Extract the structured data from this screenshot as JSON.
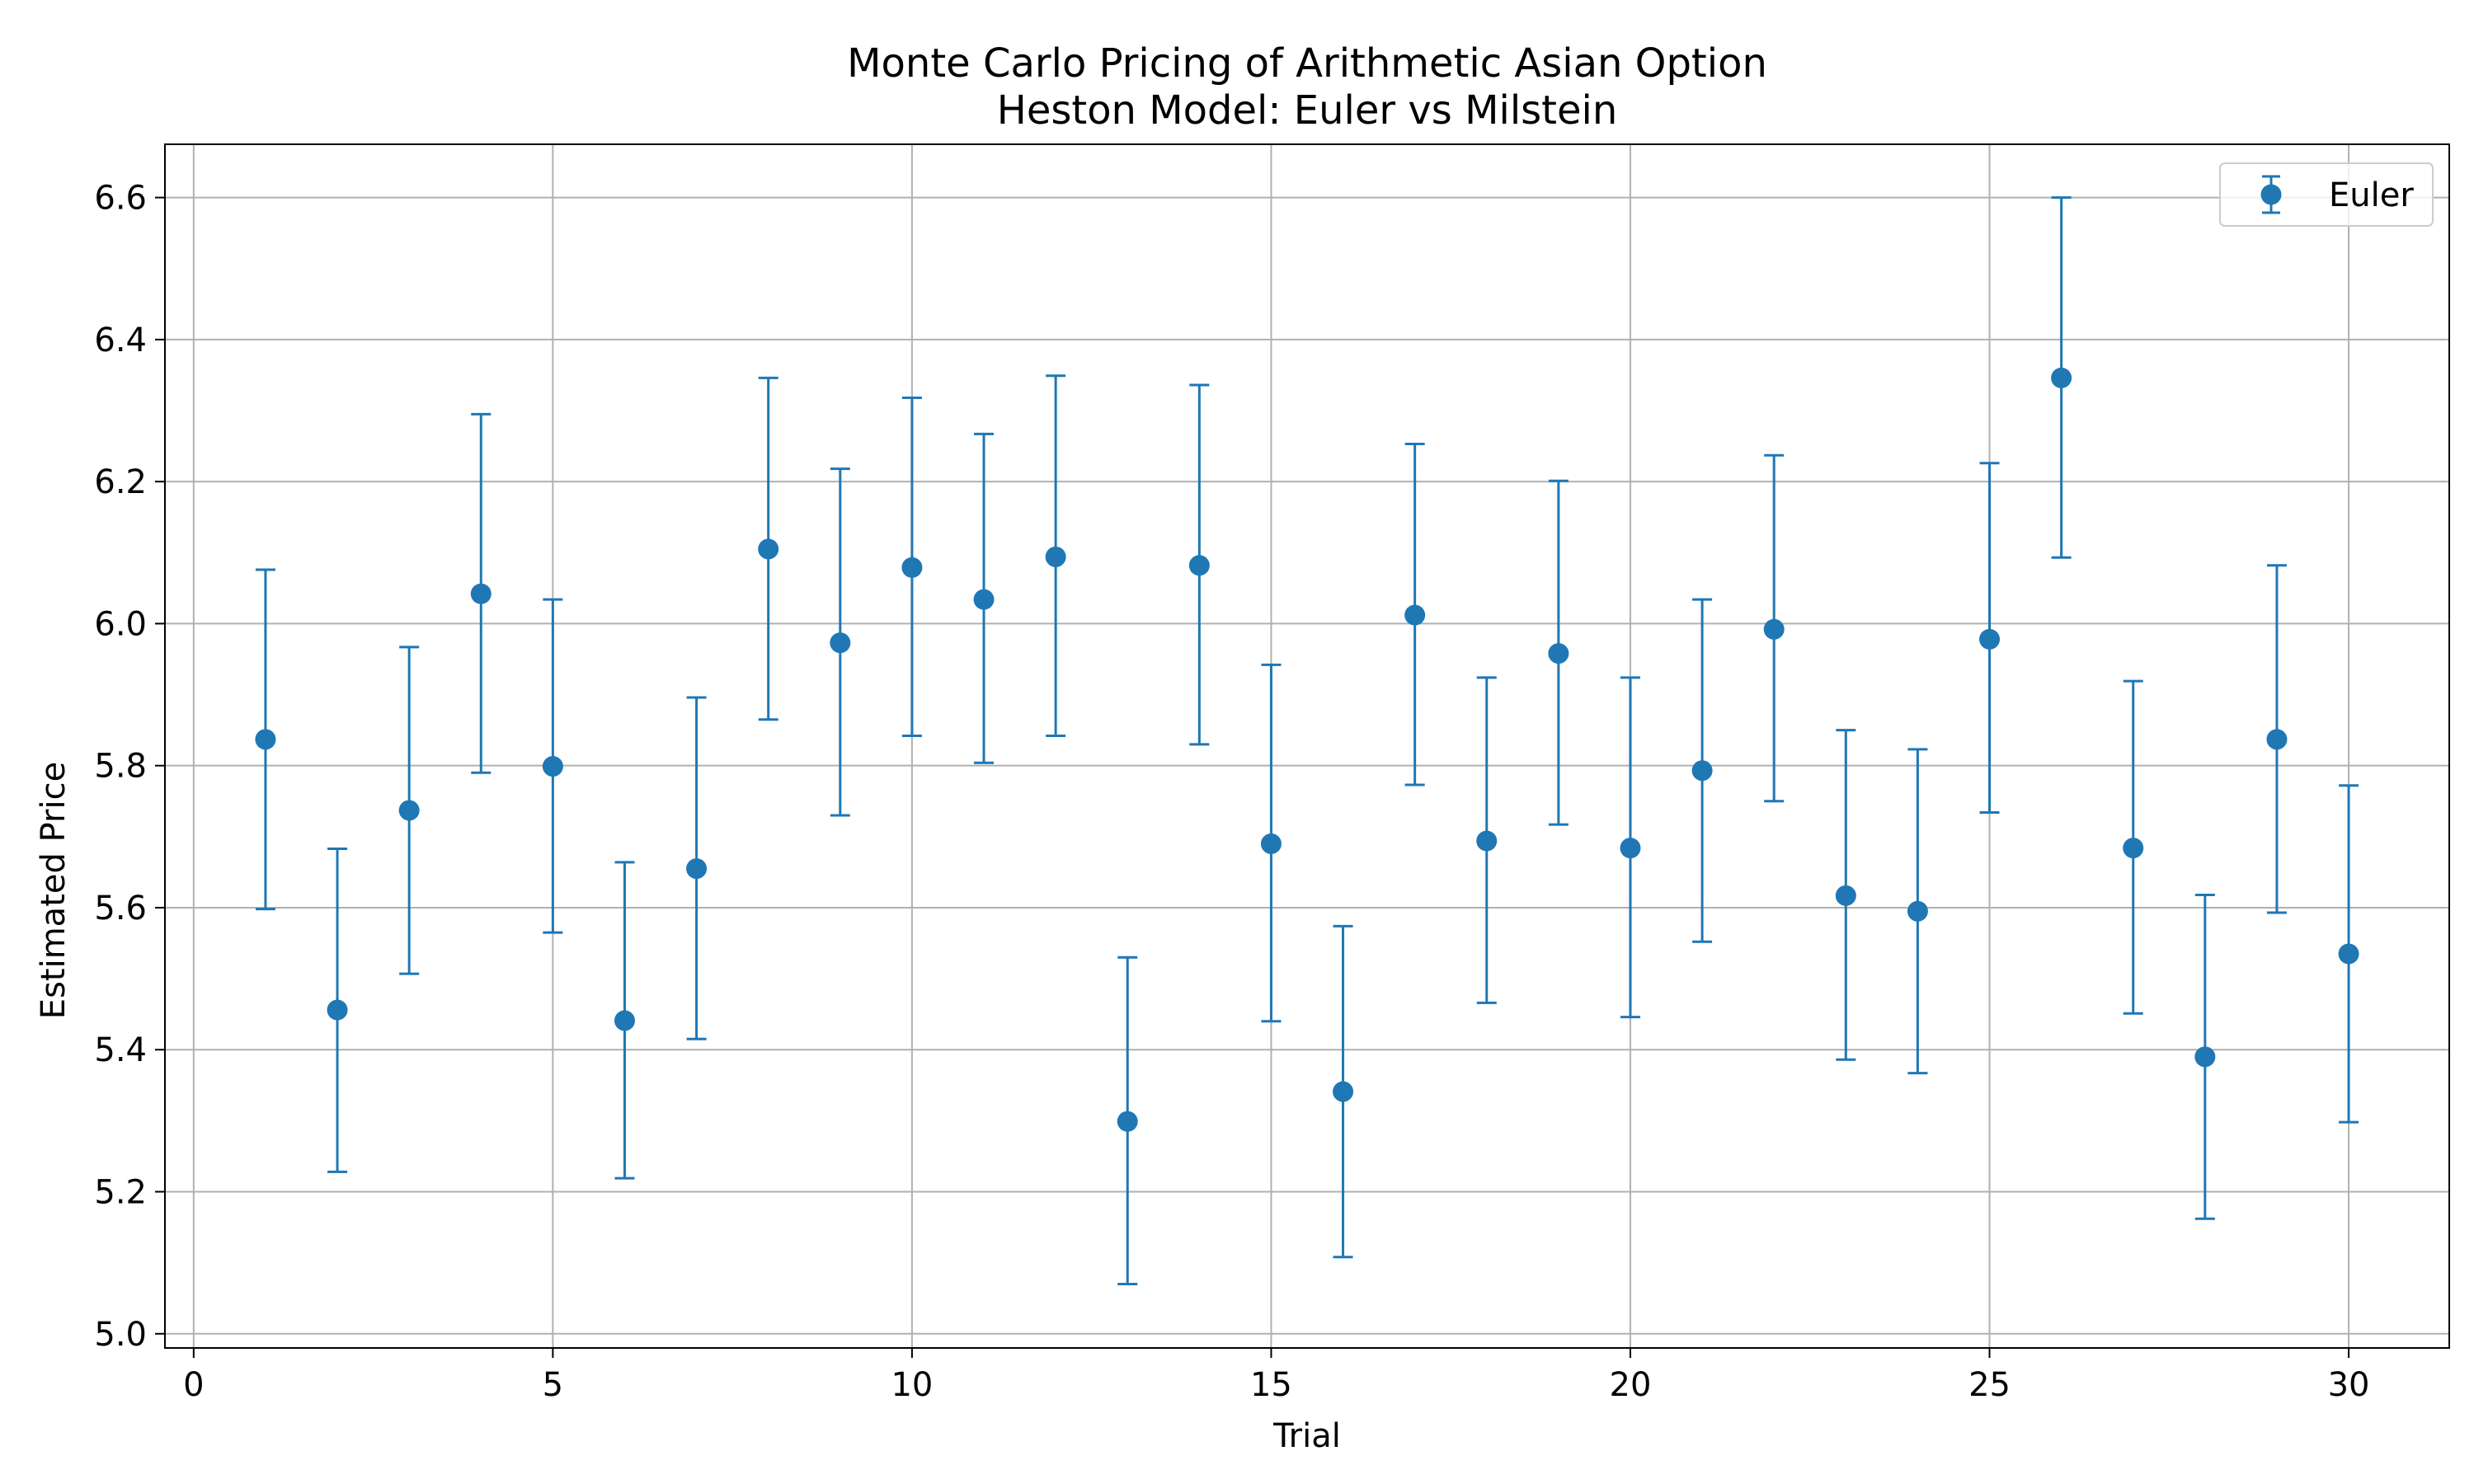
{
  "chart_data": {
    "type": "scatter",
    "title": "Monte Carlo Pricing of Arithmetic Asian Option",
    "subtitle": "Heston Model: Euler vs Milstein",
    "xlabel": "Trial",
    "ylabel": "Estimated Price",
    "xlim": [
      -0.4,
      31.4
    ],
    "ylim": [
      4.98,
      6.675
    ],
    "xticks": [
      0,
      5,
      10,
      15,
      20,
      25,
      30
    ],
    "xtick_labels": [
      "0",
      "5",
      "10",
      "15",
      "20",
      "25",
      "30"
    ],
    "yticks": [
      5.0,
      5.2,
      5.4,
      5.6,
      5.8,
      6.0,
      6.2,
      6.4,
      6.6
    ],
    "ytick_labels": [
      "5.0",
      "5.2",
      "5.4",
      "5.6",
      "5.8",
      "6.0",
      "6.2",
      "6.4",
      "6.6"
    ],
    "grid": true,
    "legend_position": "top-right",
    "series": [
      {
        "name": "Euler",
        "color": "#1f77b4",
        "marker": "circle",
        "error_bars": true,
        "x": [
          1,
          2,
          3,
          4,
          5,
          6,
          7,
          8,
          9,
          10,
          11,
          12,
          13,
          14,
          15,
          16,
          17,
          18,
          19,
          20,
          21,
          22,
          23,
          24,
          25,
          26,
          27,
          28,
          29,
          30
        ],
        "y": [
          5.837,
          5.456,
          5.737,
          6.042,
          5.799,
          5.441,
          5.655,
          6.105,
          5.973,
          6.079,
          6.034,
          6.094,
          5.299,
          6.082,
          5.69,
          5.341,
          6.012,
          5.694,
          5.958,
          5.684,
          5.793,
          5.992,
          5.617,
          5.595,
          5.978,
          6.346,
          5.684,
          5.39,
          5.837,
          5.535
        ],
        "yerr_low": [
          5.598,
          5.228,
          5.507,
          5.79,
          5.565,
          5.219,
          5.415,
          5.865,
          5.73,
          5.842,
          5.804,
          5.842,
          5.07,
          5.83,
          5.44,
          5.108,
          5.773,
          5.466,
          5.717,
          5.446,
          5.552,
          5.75,
          5.386,
          5.367,
          5.734,
          6.093,
          5.451,
          5.162,
          5.593,
          5.298
        ],
        "yerr_high": [
          6.076,
          5.683,
          5.967,
          6.295,
          6.034,
          5.664,
          5.896,
          6.346,
          6.218,
          6.318,
          6.267,
          6.349,
          5.53,
          6.336,
          5.942,
          5.574,
          6.253,
          5.924,
          6.201,
          5.924,
          6.034,
          6.237,
          5.85,
          5.823,
          6.226,
          6.6,
          5.919,
          5.618,
          6.082,
          5.772
        ]
      }
    ]
  }
}
